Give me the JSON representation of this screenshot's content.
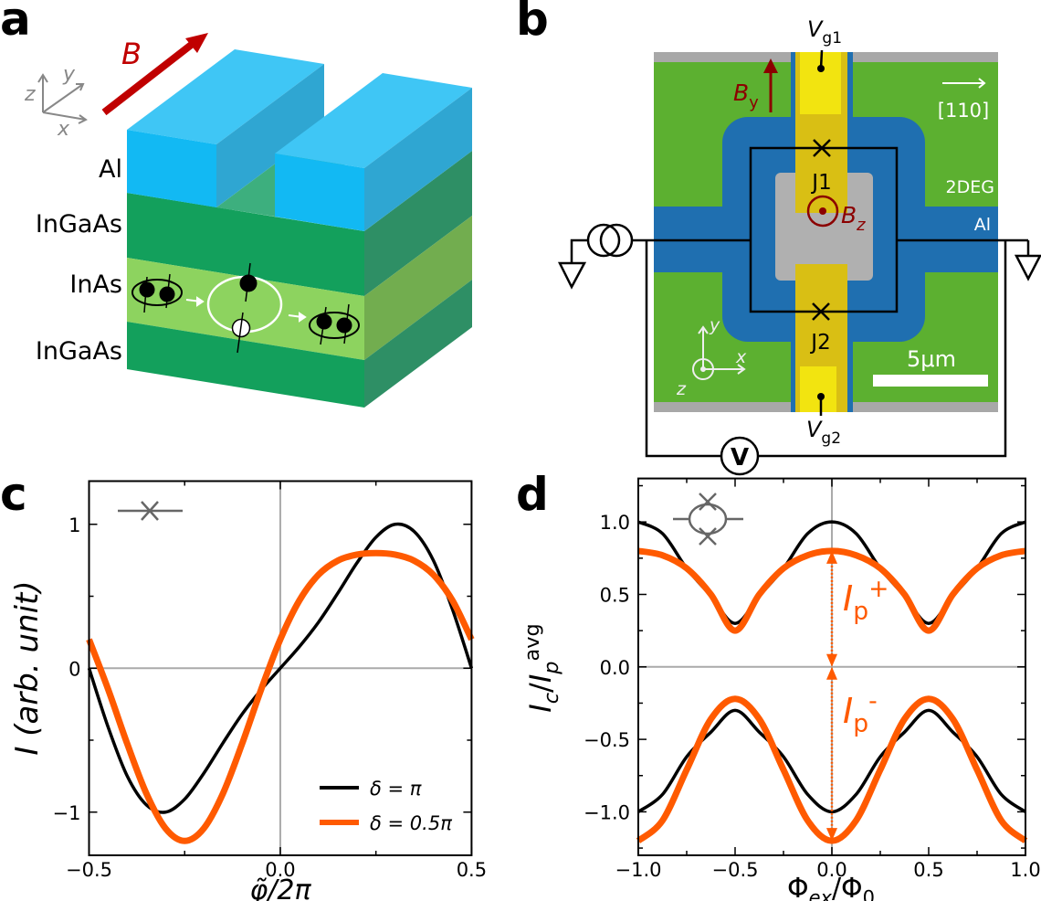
{
  "panels": {
    "a": {
      "letter": "a",
      "field_label": "B",
      "axes": {
        "x": "x",
        "y": "y",
        "z": "z"
      },
      "layers": [
        "Al",
        "InGaAs",
        "InAs",
        "InGaAs"
      ],
      "colors": {
        "al_front": "#12b9f3",
        "al_top": "#3fc6f5",
        "al_side": "#2fa6d2",
        "ingaas_front": "#13a05c",
        "ingaas_side": "#2e8f65",
        "inas_front": "#8dd35f",
        "inas_side": "#72ad4f",
        "field": "#c00000"
      }
    },
    "b": {
      "letter": "b",
      "vg1": {
        "main": "V",
        "sub": "g1"
      },
      "vg2": {
        "main": "V",
        "sub": "g2"
      },
      "by": {
        "main": "B",
        "sub": "y"
      },
      "bz": {
        "main": "B",
        "sub": "z"
      },
      "direction": "[110]",
      "j1": "J1",
      "j2": "J2",
      "label_2deg": "2DEG",
      "label_al": "Al",
      "scale_bar": "5μm",
      "voltmeter": "V",
      "axes": {
        "x": "x",
        "y": "y",
        "z": "z"
      },
      "colors": {
        "green": "#5cb030",
        "blue": "#1f6fb0",
        "yellow": "#e8cc10",
        "gray": "#a8a8a8",
        "field": "#8b0000"
      }
    },
    "c": {
      "letter": "c"
    },
    "d": {
      "letter": "d",
      "ip_plus": {
        "main": "I",
        "sub": "p",
        "sup": "+"
      },
      "ip_minus": {
        "main": "I",
        "sub": "p",
        "sup": "-"
      }
    }
  },
  "chart_data": [
    {
      "panel": "c",
      "type": "line",
      "xlabel": "φ̃/2π",
      "ylabel": "I (arb. unit)",
      "xlim": [
        -0.5,
        0.5
      ],
      "ylim": [
        -1.3,
        1.3
      ],
      "xticks": [
        -0.5,
        0.0,
        0.5
      ],
      "xtick_labels": [
        "−0.5",
        "0.0",
        "0.5"
      ],
      "yticks": [
        -1,
        0,
        1
      ],
      "ytick_labels": [
        "−1",
        "0",
        "1"
      ],
      "grid": "zero lines only",
      "legend": "lower-right",
      "x": [
        -0.5,
        -0.45,
        -0.4,
        -0.35,
        -0.3,
        -0.25,
        -0.2,
        -0.15,
        -0.1,
        -0.05,
        0,
        0.05,
        0.1,
        0.15,
        0.2,
        0.25,
        0.3,
        0.35,
        0.4,
        0.45,
        0.5
      ],
      "series": [
        {
          "name": "δ = π",
          "color": "#000000",
          "values": [
            0,
            -0.41,
            -0.75,
            -0.95,
            -1.0,
            -0.91,
            -0.73,
            -0.52,
            -0.32,
            -0.15,
            0,
            0.15,
            0.32,
            0.52,
            0.73,
            0.91,
            1.0,
            0.95,
            0.75,
            0.41,
            0
          ]
        },
        {
          "name": "δ = 0.5π",
          "color": "#ff5a00",
          "values": [
            0.2,
            -0.147,
            -0.526,
            -0.871,
            -1.113,
            -1.2,
            -1.113,
            -0.871,
            -0.526,
            -0.147,
            0.2,
            0.471,
            0.65,
            0.747,
            0.789,
            0.8,
            0.789,
            0.747,
            0.65,
            0.471,
            0.2
          ]
        }
      ]
    },
    {
      "panel": "d",
      "type": "line",
      "xlabel": "Φex/Φ0",
      "ylabel": "Ic/Ip^avg",
      "xlim": [
        -1,
        1
      ],
      "ylim": [
        -1.3,
        1.3
      ],
      "xticks": [
        -1,
        -0.5,
        0,
        0.5,
        1
      ],
      "xtick_labels": [
        "−1.0",
        "−0.5",
        "0.0",
        "0.5",
        "1.0"
      ],
      "yticks": [
        -1,
        -0.5,
        0,
        0.5,
        1
      ],
      "ytick_labels": [
        "−1.0",
        "−0.5",
        "0.0",
        "0.5",
        "1.0"
      ],
      "grid": "zero lines only",
      "x": [
        -1,
        -0.875,
        -0.75,
        -0.625,
        -0.5,
        -0.375,
        -0.25,
        -0.125,
        0,
        0.125,
        0.25,
        0.375,
        0.5,
        0.625,
        0.75,
        0.875,
        1
      ],
      "series": [
        {
          "color": "#000000",
          "values": [
            1.0,
            0.92,
            0.68,
            0.49,
            0.3,
            0.49,
            0.68,
            0.92,
            1.0,
            0.92,
            0.68,
            0.49,
            0.3,
            0.49,
            0.68,
            0.92,
            1.0
          ]
        },
        {
          "color": "#ff5a00",
          "values": [
            0.8,
            0.77,
            0.68,
            0.5,
            0.25,
            0.5,
            0.68,
            0.77,
            0.8,
            0.77,
            0.68,
            0.5,
            0.25,
            0.5,
            0.68,
            0.77,
            0.8
          ]
        },
        {
          "color": "#000000",
          "values": [
            -1.0,
            -0.88,
            -0.62,
            -0.45,
            -0.3,
            -0.45,
            -0.62,
            -0.88,
            -1.0,
            -0.88,
            -0.62,
            -0.45,
            -0.3,
            -0.45,
            -0.62,
            -0.88,
            -1.0
          ]
        },
        {
          "color": "#ff5a00",
          "values": [
            -1.2,
            -1.06,
            -0.71,
            -0.36,
            -0.22,
            -0.36,
            -0.71,
            -1.06,
            -1.2,
            -1.06,
            -0.71,
            -0.36,
            -0.22,
            -0.36,
            -0.71,
            -1.06,
            -1.2
          ]
        }
      ],
      "annotations": [
        {
          "label": "Ip+",
          "from": 0.8,
          "to": 0.0,
          "x": 0
        },
        {
          "label": "Ip-",
          "from": 0.0,
          "to": -1.2,
          "x": 0
        }
      ]
    }
  ]
}
